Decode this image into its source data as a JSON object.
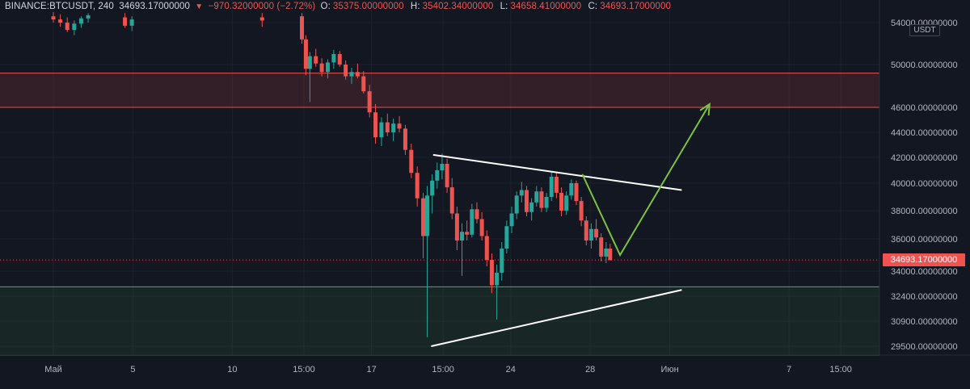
{
  "header": {
    "symbol": "BINANCE:BTCUSDT, 240",
    "last": "34693.17000000",
    "arrow": "▼",
    "change": "−970.32000000 (−2.72%)",
    "o_label": "O:",
    "o_value": "35375.00000000",
    "h_label": "H:",
    "h_value": "35402.34000000",
    "l_label": "L:",
    "l_value": "34658.41000000",
    "c_label": "C:",
    "c_value": "34693.17000000"
  },
  "axis": {
    "quote_currency": "USDT",
    "last_price_label": "34693.17000000"
  },
  "colors": {
    "background": "#131722",
    "up": "#26a69a",
    "down": "#ef5350",
    "resistance_zone": "#ef5350",
    "support_zone": "#4caf50",
    "trendline": "#ffffff",
    "projection": "#7cc33b"
  },
  "chart_data": {
    "type": "candlestick",
    "symbol": "BINANCE:BTCUSDT",
    "interval": "240",
    "y_ticks": [
      {
        "label": "54000.00000000",
        "value": 54000
      },
      {
        "label": "50000.00000000",
        "value": 50000
      },
      {
        "label": "46000.00000000",
        "value": 46000
      },
      {
        "label": "44000.00000000",
        "value": 44000
      },
      {
        "label": "42000.00000000",
        "value": 42000
      },
      {
        "label": "40000.00000000",
        "value": 40000
      },
      {
        "label": "38000.00000000",
        "value": 38000
      },
      {
        "label": "36000.00000000",
        "value": 36000
      },
      {
        "label": "34000.00000000",
        "value": 34000
      },
      {
        "label": "32400.00000000",
        "value": 32400
      },
      {
        "label": "30900.00000000",
        "value": 30900
      },
      {
        "label": "29500.00000000",
        "value": 29500
      }
    ],
    "x_ticks": [
      {
        "label": "Май",
        "t": 0
      },
      {
        "label": "5",
        "t": 4
      },
      {
        "label": "10",
        "t": 9
      },
      {
        "label": "15:00",
        "t": 12.6
      },
      {
        "label": "17",
        "t": 16
      },
      {
        "label": "15:00",
        "t": 19.6
      },
      {
        "label": "24",
        "t": 23
      },
      {
        "label": "28",
        "t": 27
      },
      {
        "label": "Июн",
        "t": 31
      },
      {
        "label": "7",
        "t": 37
      },
      {
        "label": "15:00",
        "t": 39.6
      }
    ],
    "zones": [
      {
        "name": "resistance",
        "from": 46000,
        "to": 49200
      },
      {
        "name": "support",
        "from": 29000,
        "to": 33000
      }
    ],
    "last_price": 34693.17,
    "trendlines": [
      {
        "t1": 19.1,
        "p1": 42200,
        "t2": 31.6,
        "p2": 39500,
        "style": "upper"
      },
      {
        "t1": 19.0,
        "p1": 29500,
        "t2": 31.6,
        "p2": 32800,
        "style": "lower"
      }
    ],
    "projection_path": [
      {
        "t": 26.6,
        "p": 40700
      },
      {
        "t": 28.5,
        "p": 35000
      },
      {
        "t": 33.0,
        "p": 46300
      }
    ],
    "candles": [
      [
        0.0,
        54600,
        55000,
        54000,
        54300
      ],
      [
        0.35,
        54300,
        54800,
        53600,
        54000
      ],
      [
        0.7,
        54000,
        54500,
        53100,
        53300
      ],
      [
        1.05,
        53300,
        54200,
        52800,
        53900
      ],
      [
        1.4,
        53900,
        54600,
        53500,
        54400
      ],
      [
        1.75,
        54400,
        54900,
        54000,
        54700
      ],
      [
        3.6,
        54500,
        54900,
        53500,
        53700
      ],
      [
        3.95,
        53700,
        54600,
        53200,
        54300
      ],
      [
        10.5,
        54500,
        54900,
        53600,
        54200
      ],
      [
        12.5,
        54600,
        54900,
        52000,
        52400
      ],
      [
        12.7,
        52400,
        52800,
        49000,
        49600
      ],
      [
        12.9,
        49600,
        51200,
        46500,
        50800
      ],
      [
        13.2,
        50800,
        51500,
        49800,
        50100
      ],
      [
        13.5,
        50100,
        50600,
        48900,
        49300
      ],
      [
        13.8,
        49300,
        50500,
        48700,
        50200
      ],
      [
        14.1,
        50200,
        51400,
        49600,
        51000
      ],
      [
        14.4,
        51000,
        51300,
        49800,
        50000
      ],
      [
        14.7,
        50000,
        50400,
        48600,
        48900
      ],
      [
        15.0,
        48900,
        49700,
        48200,
        49300
      ],
      [
        15.3,
        49300,
        50100,
        48700,
        48900
      ],
      [
        15.6,
        48900,
        49400,
        47300,
        47500
      ],
      [
        15.9,
        47500,
        48100,
        45200,
        45600
      ],
      [
        16.2,
        45600,
        46300,
        43100,
        43600
      ],
      [
        16.5,
        43600,
        45200,
        42900,
        44800
      ],
      [
        16.8,
        44800,
        45500,
        43700,
        44000
      ],
      [
        17.1,
        44000,
        45100,
        43300,
        44700
      ],
      [
        17.4,
        44700,
        45300,
        44000,
        44300
      ],
      [
        17.7,
        44300,
        44600,
        42200,
        42600
      ],
      [
        18.0,
        42600,
        43100,
        40400,
        40800
      ],
      [
        18.3,
        40800,
        41300,
        38300,
        38900
      ],
      [
        18.6,
        38900,
        39300,
        34800,
        36200
      ],
      [
        18.8,
        36200,
        39800,
        30000,
        39100
      ],
      [
        19.05,
        39100,
        40700,
        37800,
        40200
      ],
      [
        19.3,
        40200,
        41600,
        39600,
        41000
      ],
      [
        19.55,
        41000,
        42300,
        40300,
        41500
      ],
      [
        19.8,
        41500,
        41900,
        39300,
        39700
      ],
      [
        20.05,
        39700,
        40400,
        37400,
        37800
      ],
      [
        20.3,
        37800,
        38300,
        35300,
        35900
      ],
      [
        20.55,
        35900,
        37100,
        33700,
        36500
      ],
      [
        20.8,
        36500,
        37300,
        35900,
        36300
      ],
      [
        21.05,
        36300,
        38500,
        36100,
        38100
      ],
      [
        21.3,
        38100,
        38600,
        37100,
        37400
      ],
      [
        21.55,
        37400,
        37900,
        35900,
        36200
      ],
      [
        21.8,
        36200,
        36600,
        34300,
        34700
      ],
      [
        22.05,
        34700,
        35100,
        32600,
        33100
      ],
      [
        22.3,
        33100,
        34400,
        31000,
        33900
      ],
      [
        22.55,
        33900,
        35800,
        33400,
        35400
      ],
      [
        22.8,
        35400,
        37300,
        35100,
        36900
      ],
      [
        23.05,
        36900,
        38300,
        36400,
        37800
      ],
      [
        23.3,
        37800,
        39400,
        37400,
        39100
      ],
      [
        23.55,
        39100,
        40100,
        38600,
        39500
      ],
      [
        23.8,
        39500,
        39800,
        37600,
        37900
      ],
      [
        24.05,
        37900,
        38900,
        37300,
        38600
      ],
      [
        24.3,
        38600,
        39800,
        38300,
        39400
      ],
      [
        24.55,
        39400,
        39700,
        37900,
        38200
      ],
      [
        24.8,
        38200,
        39300,
        37900,
        39000
      ],
      [
        25.05,
        39000,
        40900,
        38700,
        40500
      ],
      [
        25.3,
        40500,
        40800,
        38900,
        39300
      ],
      [
        25.55,
        39300,
        39700,
        37600,
        38000
      ],
      [
        25.8,
        38000,
        39400,
        37700,
        39100
      ],
      [
        26.05,
        39100,
        40300,
        38800,
        40000
      ],
      [
        26.3,
        40000,
        40200,
        38400,
        38700
      ],
      [
        26.55,
        38700,
        39000,
        36900,
        37300
      ],
      [
        26.8,
        37300,
        37600,
        35600,
        35900
      ],
      [
        27.05,
        35900,
        37100,
        35400,
        36700
      ],
      [
        27.3,
        36700,
        37400,
        35900,
        36100
      ],
      [
        27.55,
        36100,
        36400,
        34600,
        34900
      ],
      [
        27.8,
        34900,
        35800,
        34500,
        35400
      ],
      [
        28.0,
        35400,
        35700,
        34650,
        34693
      ]
    ]
  }
}
